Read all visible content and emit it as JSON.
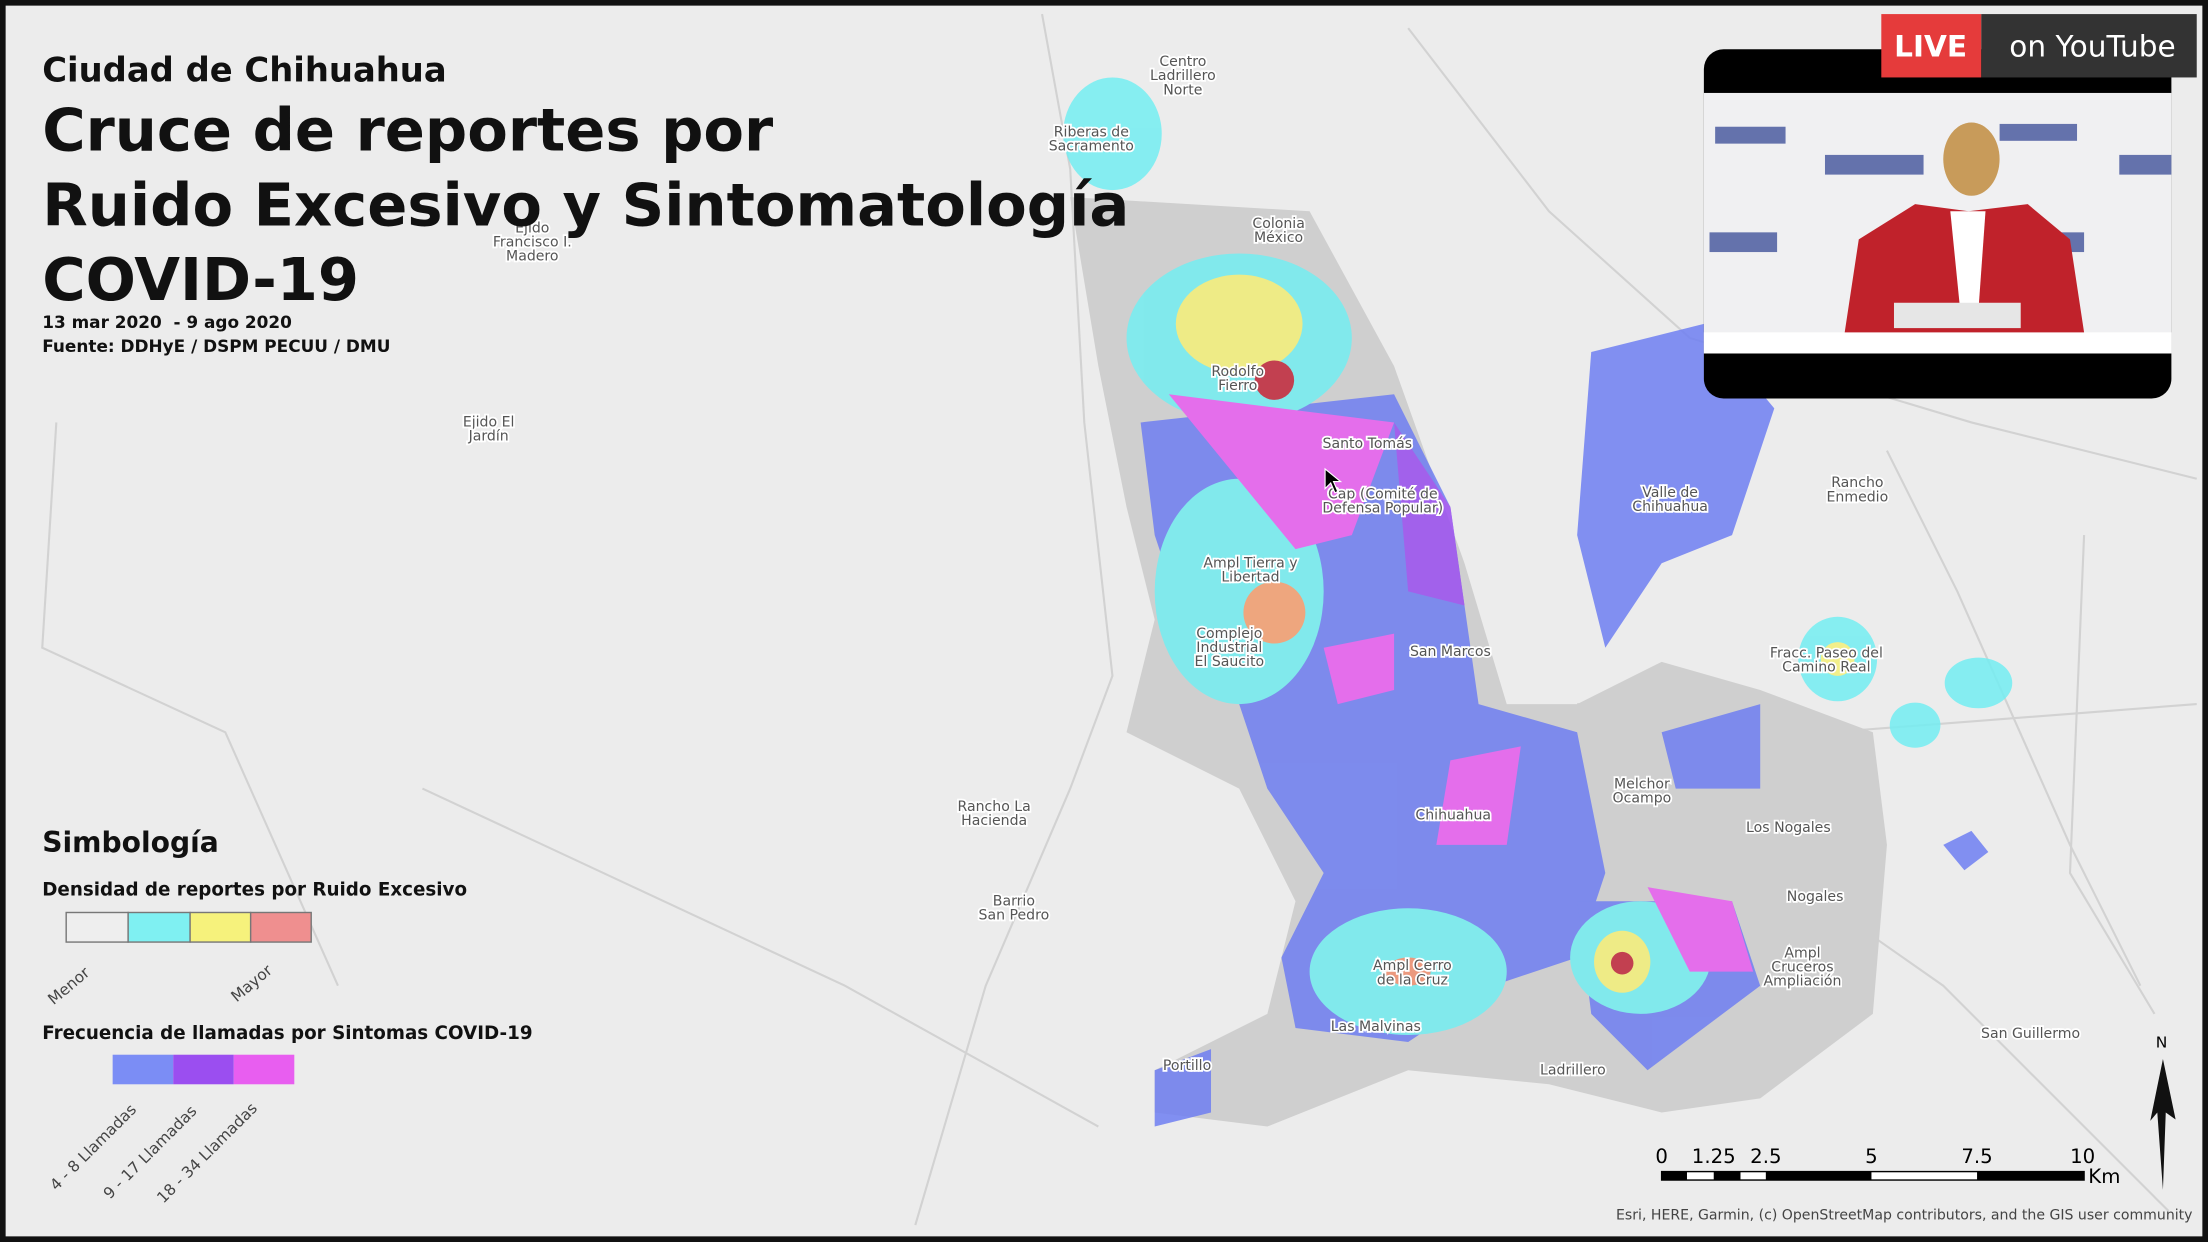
{
  "header": {
    "city": "Ciudad de Chihuahua",
    "title_lines": [
      "Cruce de reportes por",
      "Ruido Excesivo y Sintomatología",
      "COVID-19"
    ],
    "dates": "13 mar 2020  - 9 ago 2020",
    "source": "Fuente: DDHyE / DSPM PECUU / DMU"
  },
  "legend": {
    "title": "Simbología",
    "noise": {
      "title": "Densidad de reportes por Ruido Excesivo",
      "low": "Menor",
      "high": "Mayor"
    },
    "covid": {
      "title": "Frecuencia de llamadas por Sintomas COVID-19",
      "classes": [
        "4 - 8 Llamadas",
        "9 - 17 Llamadas",
        "18 - 34 Llamadas"
      ]
    }
  },
  "places": [
    [
      "Centro",
      "Ladrillero",
      "Norte"
    ],
    [
      "Riberas de",
      "Sacramento"
    ],
    [
      "Colonia",
      "México"
    ],
    [
      "Ejido",
      "Francisco I.",
      "Madero"
    ],
    [
      "Ejido El",
      "Jardín"
    ],
    [
      "Rodolfo",
      "Fierro"
    ],
    [
      "Santo Tomás"
    ],
    [
      "Cap (Comité de",
      "Defensa Popular)"
    ],
    [
      "Ampl Tierra y",
      "Libertad"
    ],
    [
      "Complejo",
      "Industrial",
      "El Saucito"
    ],
    [
      "San Marcos"
    ],
    [
      "Valle de",
      "Chihuahua"
    ],
    [
      "Rancho",
      "Enmedio"
    ],
    [
      "Fracc. Paseo del",
      "Camino Real"
    ],
    [
      "Melchor",
      "Ocampo"
    ],
    [
      "Chihuahua"
    ],
    [
      "Los Nogales"
    ],
    [
      "Rancho La",
      "Hacienda"
    ],
    [
      "Barrio",
      "San Pedro"
    ],
    [
      "Nogales"
    ],
    [
      "Ampl",
      "Cruceros",
      "Ampliación"
    ],
    [
      "Ampl Cerro",
      "de la Cruz"
    ],
    [
      "Las Malvinas"
    ],
    [
      "Ladrillero"
    ],
    [
      "Portillo"
    ],
    [
      "San Guillermo"
    ]
  ],
  "scale_bar": {
    "ticks": [
      "0",
      "1.25",
      "2.5",
      "5",
      "7.5",
      "10"
    ],
    "unit": "Km"
  },
  "north": "N",
  "attribution": "Esri, HERE, Garmin, (c) OpenStreetMap contributors, and the GIS user community",
  "live_badge": {
    "live": "LIVE",
    "platform": "on YouTube"
  }
}
